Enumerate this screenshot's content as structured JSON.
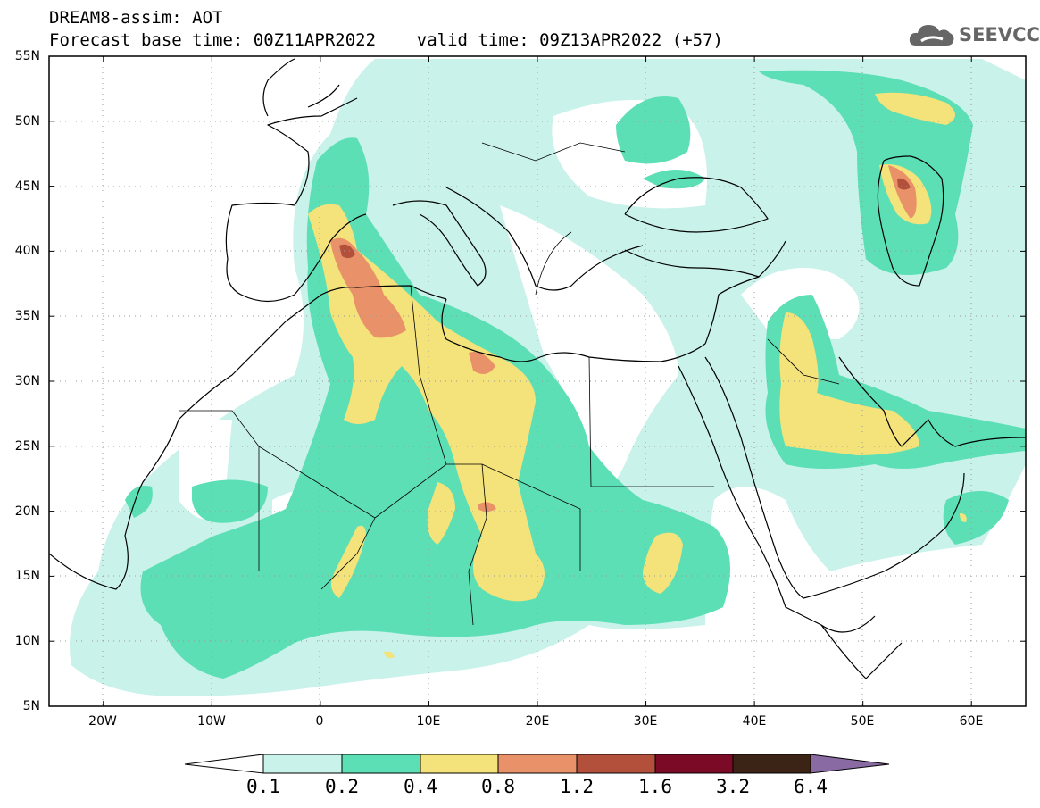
{
  "header": {
    "title_line1": "DREAM8-assim: AOT",
    "title_line2": "Forecast base time: 00Z11APR2022    valid time: 09Z13APR2022 (+57)"
  },
  "logo": {
    "icon": "cloud-logo-icon",
    "text": "SEEVCCC"
  },
  "map": {
    "projection": "lat-lon",
    "lon_range": [
      -25,
      65
    ],
    "lat_range": [
      5,
      55
    ],
    "lat_ticks": [
      {
        "value": 55,
        "label": "55N"
      },
      {
        "value": 50,
        "label": "50N"
      },
      {
        "value": 45,
        "label": "45N"
      },
      {
        "value": 40,
        "label": "40N"
      },
      {
        "value": 35,
        "label": "35N"
      },
      {
        "value": 30,
        "label": "30N"
      },
      {
        "value": 25,
        "label": "25N"
      },
      {
        "value": 20,
        "label": "20N"
      },
      {
        "value": 15,
        "label": "15N"
      },
      {
        "value": 10,
        "label": "10N"
      },
      {
        "value": 5,
        "label": "5N"
      }
    ],
    "lon_ticks": [
      {
        "value": -20,
        "label": "20W"
      },
      {
        "value": -10,
        "label": "10W"
      },
      {
        "value": 0,
        "label": "0"
      },
      {
        "value": 10,
        "label": "10E"
      },
      {
        "value": 20,
        "label": "20E"
      },
      {
        "value": 30,
        "label": "30E"
      },
      {
        "value": 40,
        "label": "40E"
      },
      {
        "value": 50,
        "label": "50E"
      },
      {
        "value": 60,
        "label": "60E"
      }
    ],
    "grid": "dotted"
  },
  "colorbar": {
    "labels": [
      "0.1",
      "0.2",
      "0.4",
      "0.8",
      "1.2",
      "1.6",
      "3.2",
      "6.4"
    ],
    "colors": [
      "#ffffff",
      "#c9f2ea",
      "#5ddfb5",
      "#f4e27a",
      "#e9926a",
      "#b2503c",
      "#7a0a26",
      "#3b2415",
      "#8a6aa3"
    ]
  }
}
